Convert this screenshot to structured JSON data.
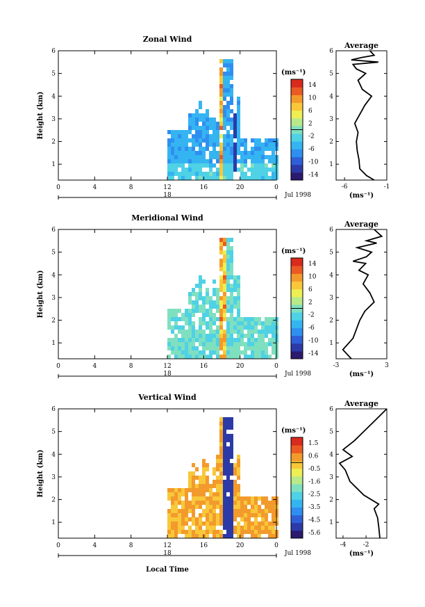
{
  "figure": {
    "x_axis_label": "Local Time",
    "date_label": "Jul 1998",
    "day_label": "18",
    "colorbar_unit": "(ms⁻¹)",
    "profile_unit": "(ms⁻¹)",
    "profile_title": "Average",
    "y_axis_label": "Height (km)"
  },
  "chart_data": [
    {
      "type": "heatmap",
      "title": "Zonal Wind",
      "ylabel": "Height (km)",
      "xlabel": "",
      "x_ticks": [
        "0",
        "4",
        "8",
        "12",
        "16",
        "20",
        "0"
      ],
      "y_ticks": [
        "1",
        "2",
        "3",
        "4",
        "5",
        "6"
      ],
      "xlim": [
        0,
        24
      ],
      "ylim": [
        0.3,
        6
      ],
      "colorbar": {
        "label": "(ms⁻¹)",
        "ticks": [
          "14",
          "10",
          "6",
          "2",
          "-2",
          "-6",
          "-10",
          "-14"
        ],
        "range": [
          -16,
          16
        ]
      },
      "profile": {
        "title": "Average",
        "x_ticks": [
          "-6",
          "-1"
        ],
        "xlim": [
          -7,
          -1
        ],
        "xlabel": "(ms⁻¹)",
        "points": [
          [
            -2.5,
            0.3
          ],
          [
            -3.4,
            0.5
          ],
          [
            -4.2,
            0.8
          ],
          [
            -4.3,
            1.2
          ],
          [
            -4.5,
            1.6
          ],
          [
            -4.6,
            2.0
          ],
          [
            -4.4,
            2.4
          ],
          [
            -4.8,
            2.8
          ],
          [
            -4.2,
            3.2
          ],
          [
            -3.6,
            3.6
          ],
          [
            -2.8,
            4.0
          ],
          [
            -3.9,
            4.3
          ],
          [
            -4.4,
            4.7
          ],
          [
            -3.5,
            5.0
          ],
          [
            -4.6,
            5.2
          ],
          [
            -5.0,
            5.4
          ],
          [
            -2.0,
            5.5
          ],
          [
            -5.2,
            5.6
          ],
          [
            -4.0,
            5.7
          ],
          [
            -2.5,
            5.8
          ],
          [
            -3.0,
            6.0
          ]
        ]
      }
    },
    {
      "type": "heatmap",
      "title": "Meridional Wind",
      "ylabel": "Height (km)",
      "xlabel": "",
      "x_ticks": [
        "0",
        "4",
        "8",
        "12",
        "16",
        "20",
        "0"
      ],
      "y_ticks": [
        "1",
        "2",
        "3",
        "4",
        "5",
        "6"
      ],
      "xlim": [
        0,
        24
      ],
      "ylim": [
        0.3,
        6
      ],
      "colorbar": {
        "label": "(ms⁻¹)",
        "ticks": [
          "14",
          "10",
          "6",
          "2",
          "-2",
          "-6",
          "-10",
          "-14"
        ],
        "range": [
          -16,
          16
        ]
      },
      "profile": {
        "title": "Average",
        "x_ticks": [
          "-3",
          "3"
        ],
        "xlim": [
          -3,
          3
        ],
        "xlabel": "(ms⁻¹)",
        "points": [
          [
            -1.2,
            0.3
          ],
          [
            -2.2,
            0.7
          ],
          [
            -1.0,
            1.2
          ],
          [
            -0.6,
            1.6
          ],
          [
            -0.2,
            2.0
          ],
          [
            0.4,
            2.4
          ],
          [
            1.5,
            2.8
          ],
          [
            1.0,
            3.2
          ],
          [
            0.2,
            3.6
          ],
          [
            0.8,
            4.0
          ],
          [
            -0.3,
            4.2
          ],
          [
            0.5,
            4.5
          ],
          [
            -1.0,
            4.6
          ],
          [
            0.6,
            4.8
          ],
          [
            1.2,
            5.0
          ],
          [
            -0.5,
            5.2
          ],
          [
            1.8,
            5.4
          ],
          [
            0.6,
            5.5
          ],
          [
            2.4,
            5.7
          ],
          [
            1.5,
            6.0
          ]
        ]
      }
    },
    {
      "type": "heatmap",
      "title": "Vertical Wind",
      "ylabel": "Height (km)",
      "xlabel": "Local Time",
      "x_ticks": [
        "0",
        "4",
        "8",
        "12",
        "16",
        "20",
        "0"
      ],
      "y_ticks": [
        "1",
        "2",
        "3",
        "4",
        "5",
        "6"
      ],
      "xlim": [
        0,
        24
      ],
      "ylim": [
        0.3,
        6
      ],
      "colorbar": {
        "label": "(ms⁻¹)",
        "ticks": [
          "1.5",
          "0.6",
          "-0.5",
          "-1.6",
          "-2.5",
          "-3.5",
          "-4.5",
          "-5.6"
        ],
        "range": [
          -6,
          2
        ]
      },
      "profile": {
        "title": "Average",
        "x_ticks": [
          "-4",
          "-2"
        ],
        "xlim": [
          -4.6,
          -0.2
        ],
        "xlabel": "(ms⁻¹)",
        "points": [
          [
            -0.8,
            0.3
          ],
          [
            -0.9,
            0.8
          ],
          [
            -1.0,
            1.2
          ],
          [
            -1.3,
            1.6
          ],
          [
            -0.9,
            1.8
          ],
          [
            -2.2,
            2.2
          ],
          [
            -3.4,
            2.8
          ],
          [
            -3.8,
            3.3
          ],
          [
            -4.3,
            3.6
          ],
          [
            -3.2,
            3.9
          ],
          [
            -4.0,
            4.2
          ],
          [
            -3.0,
            4.6
          ],
          [
            -2.2,
            5.0
          ],
          [
            -1.4,
            5.4
          ],
          [
            -0.6,
            5.8
          ],
          [
            -0.2,
            6.0
          ]
        ]
      }
    }
  ]
}
